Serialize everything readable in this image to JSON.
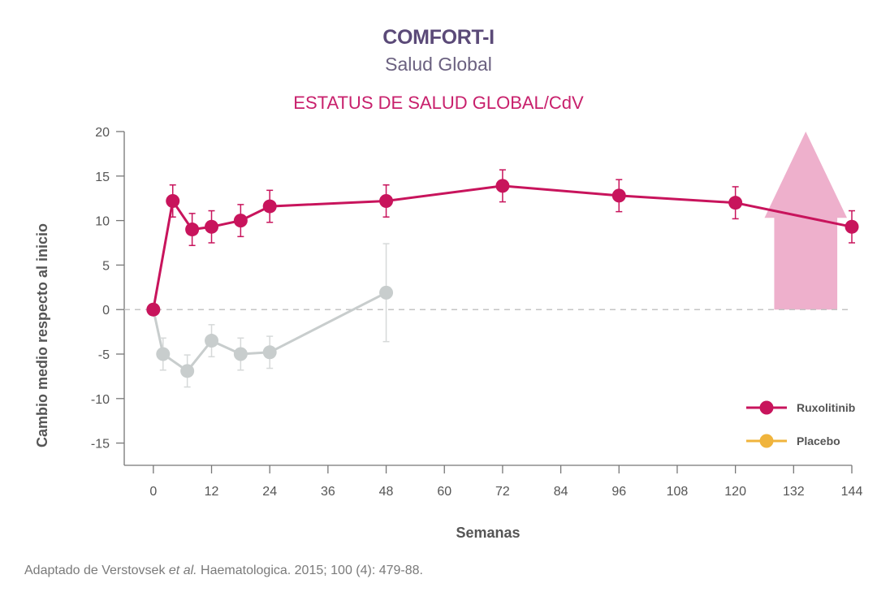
{
  "header": {
    "title": "COMFORT-I",
    "subtitle": "Salud Global",
    "chart_heading": "ESTATUS DE SALUD GLOBAL/CdV"
  },
  "caption": {
    "prefix": "Adaptado de Verstovsek ",
    "italic": "et al.",
    "suffix": " Haematologica. 2015; 100 (4): 479-88."
  },
  "colors": {
    "ruxolitinib": "#c8145c",
    "placebo_legend": "#f0b43c",
    "placebo_line": "#c8cdcd",
    "arrow": "#eeb0cc"
  },
  "chart_data": {
    "type": "line",
    "xlabel": "Semanas",
    "ylabel": "Cambio medio respecto al inicio",
    "xlim": [
      -6,
      144
    ],
    "ylim": [
      -17.5,
      20
    ],
    "x_ticks": [
      0,
      12,
      24,
      36,
      48,
      60,
      72,
      84,
      96,
      108,
      120,
      132,
      144
    ],
    "y_ticks": [
      20,
      15,
      10,
      5,
      0,
      -5,
      -10,
      -15
    ],
    "reference_line": 0,
    "legend_position": "bottom-right",
    "annotation": "upward-arrow",
    "series": [
      {
        "name": "Ruxolitinib",
        "x": [
          0,
          4,
          8,
          12,
          18,
          24,
          48,
          72,
          96,
          120,
          144
        ],
        "y": [
          0,
          12.2,
          9,
          9.3,
          10,
          11.6,
          12.2,
          13.9,
          12.8,
          12,
          9.3
        ],
        "err": [
          0,
          1.8,
          1.8,
          1.8,
          1.8,
          1.8,
          1.8,
          1.8,
          1.8,
          1.8,
          1.8
        ]
      },
      {
        "name": "Placebo",
        "x": [
          0,
          2,
          7,
          12,
          18,
          24,
          48
        ],
        "y": [
          0,
          -5,
          -6.9,
          -3.5,
          -5,
          -4.8,
          1.9
        ],
        "err": [
          0,
          1.8,
          1.8,
          1.8,
          1.8,
          1.8,
          5.5
        ]
      }
    ]
  }
}
